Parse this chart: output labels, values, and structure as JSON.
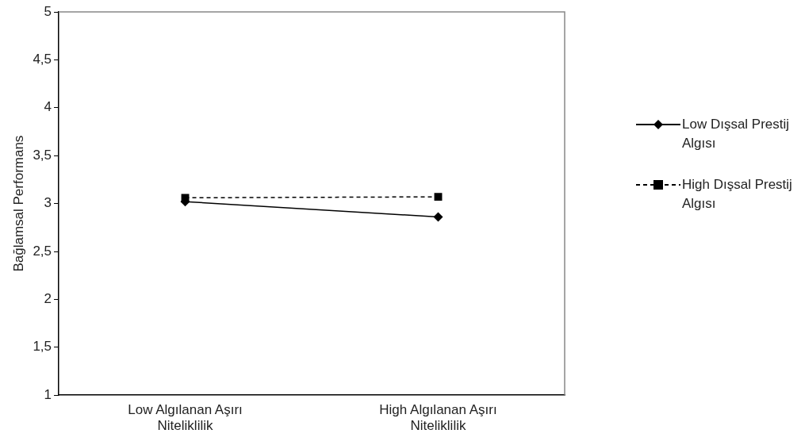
{
  "chart_data": {
    "type": "line",
    "ylabel": "Bağlamsal Performans",
    "categories": [
      "Low Algılanan Aşırı Niteliklilik",
      "High Algılanan Aşırı Niteliklilik"
    ],
    "series": [
      {
        "name": "Low Dışsal Prestij Algısı",
        "color": "#000000",
        "values": [
          3.02,
          2.86
        ],
        "marker": "diamond",
        "line_style": "solid"
      },
      {
        "name": "High Dışsal Prestij Algısı",
        "color": "#000000",
        "values": [
          3.06,
          3.07
        ],
        "marker": "square",
        "line_style": "dashed"
      }
    ],
    "ylim": [
      1,
      5
    ],
    "yticks": [
      1,
      {
        "value": 1.5,
        "label": "1,5"
      },
      2,
      {
        "value": 2.5,
        "label": "2,5"
      },
      3,
      {
        "value": 3.5,
        "label": "3,5"
      },
      4,
      {
        "value": 4.5,
        "label": "4,5"
      },
      5
    ],
    "grid": false,
    "legend": "right"
  }
}
